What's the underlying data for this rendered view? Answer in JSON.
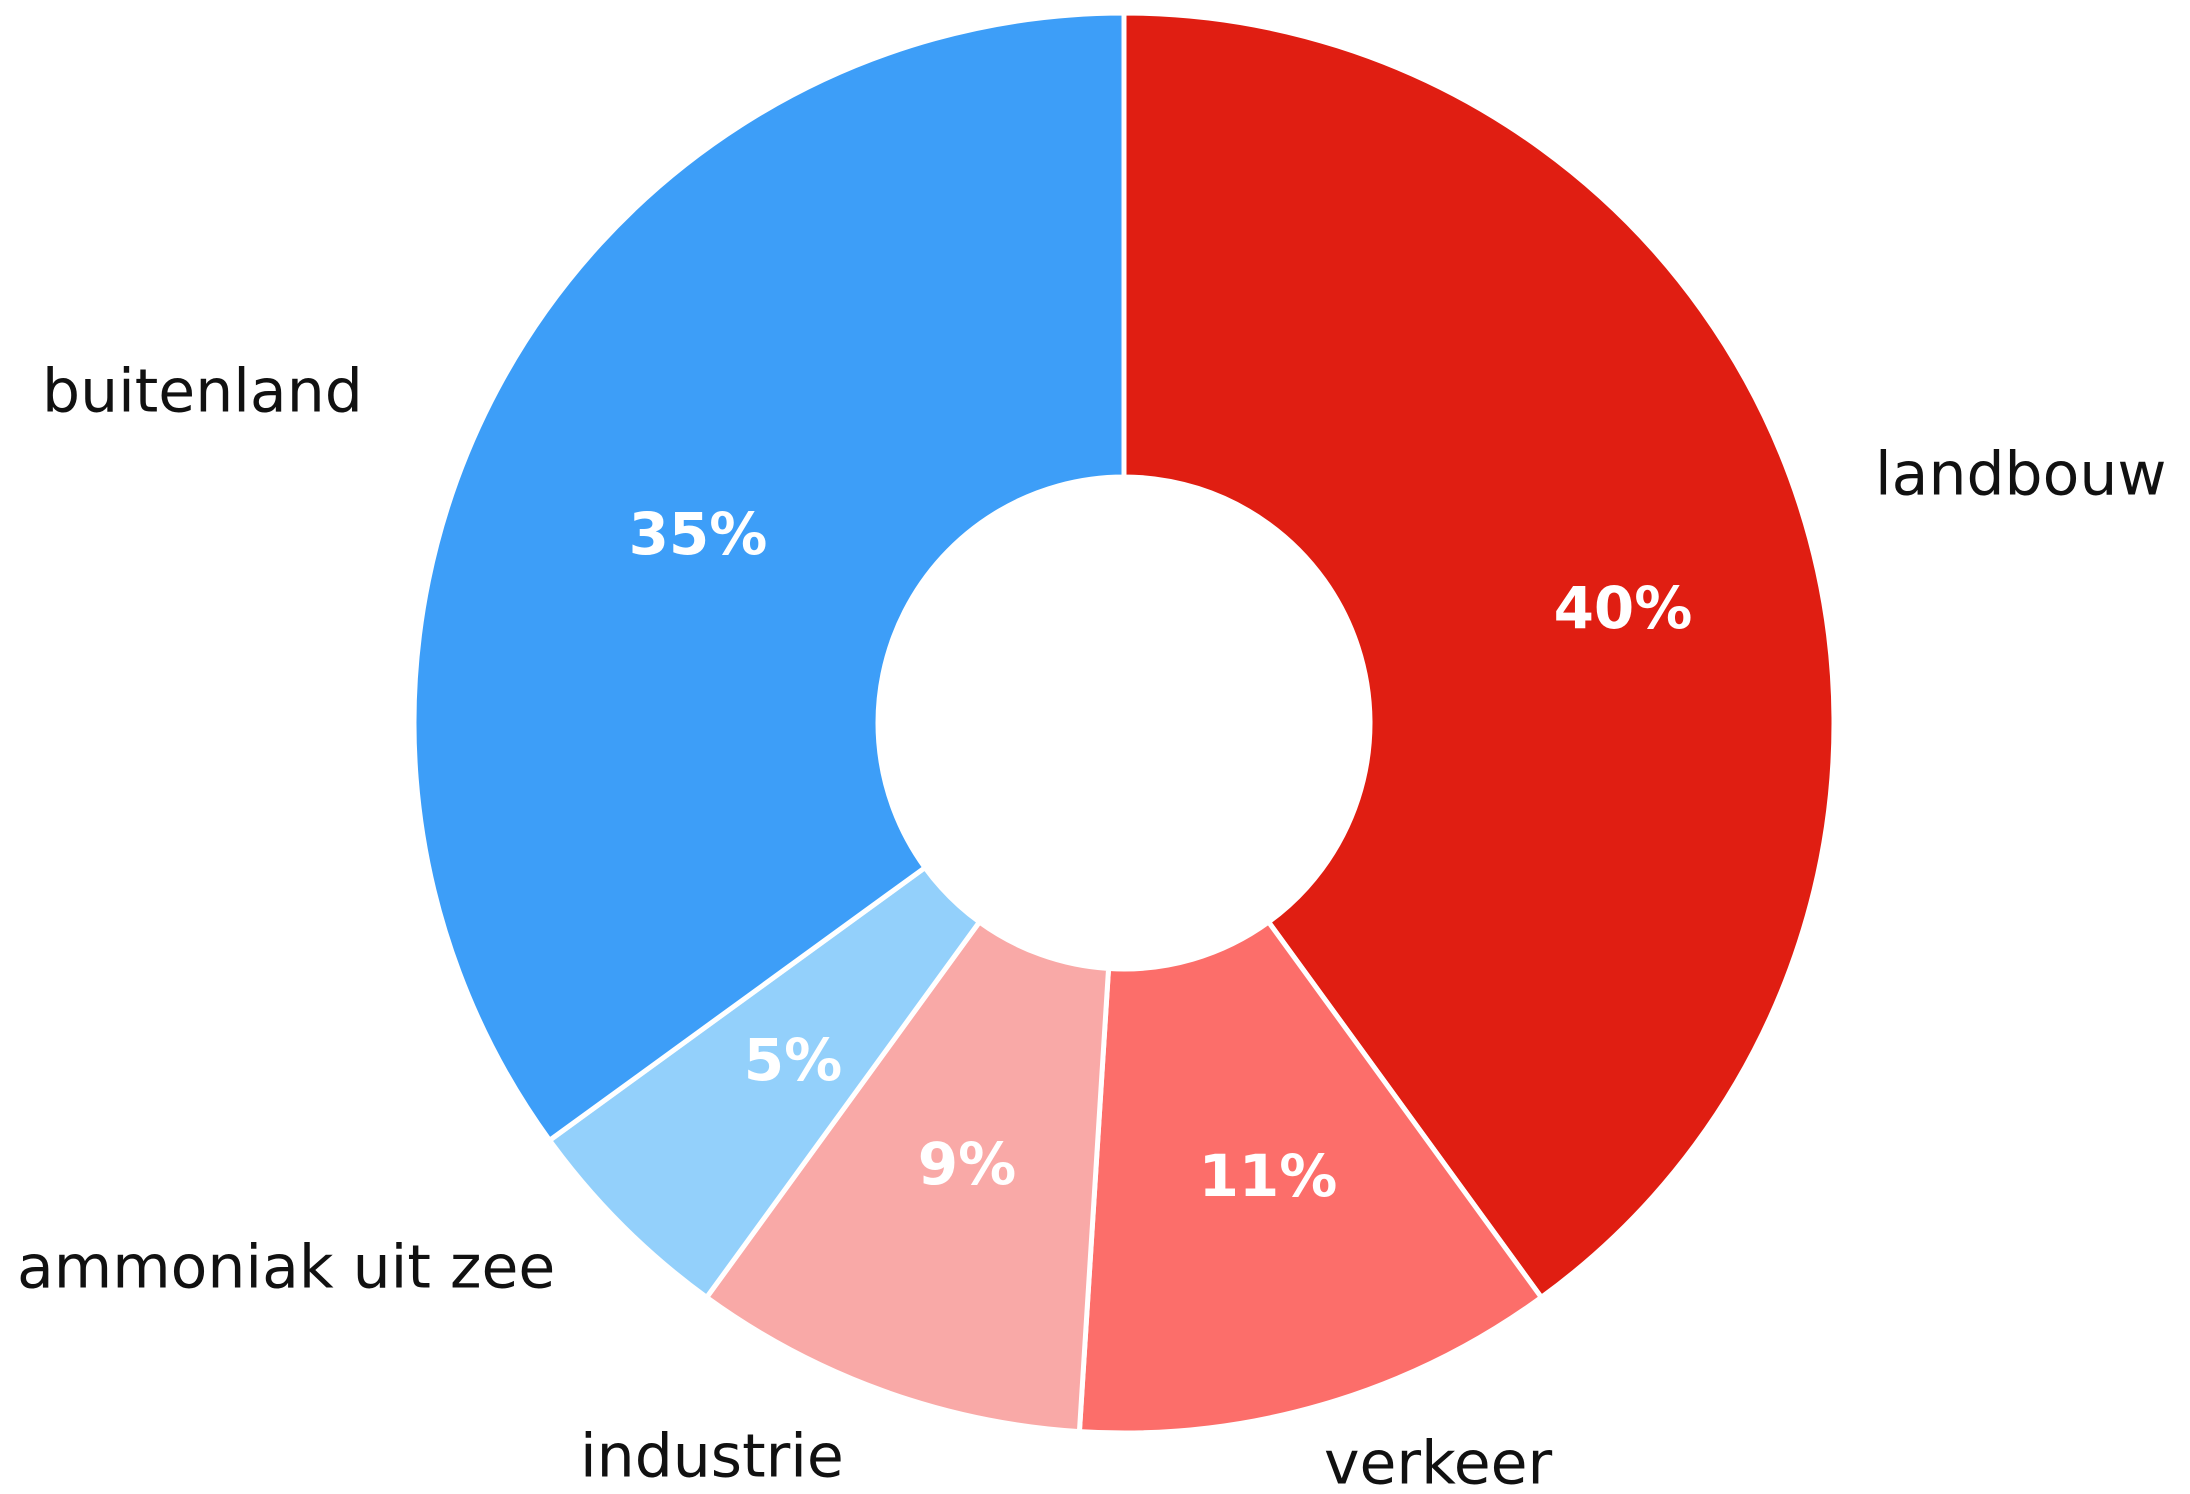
{
  "chart_data": {
    "type": "pie",
    "categories": [
      "landbouw",
      "verkeer",
      "industrie",
      "ammoniak uit zee",
      "buitenland"
    ],
    "values": [
      40,
      11,
      9,
      5,
      35
    ],
    "value_labels": [
      "40%",
      "11%",
      "9%",
      "5%",
      "35%"
    ],
    "colors": [
      "#e01e12",
      "#fc6e6a",
      "#f9a9a7",
      "#93d0fb",
      "#3d9ef8"
    ]
  }
}
